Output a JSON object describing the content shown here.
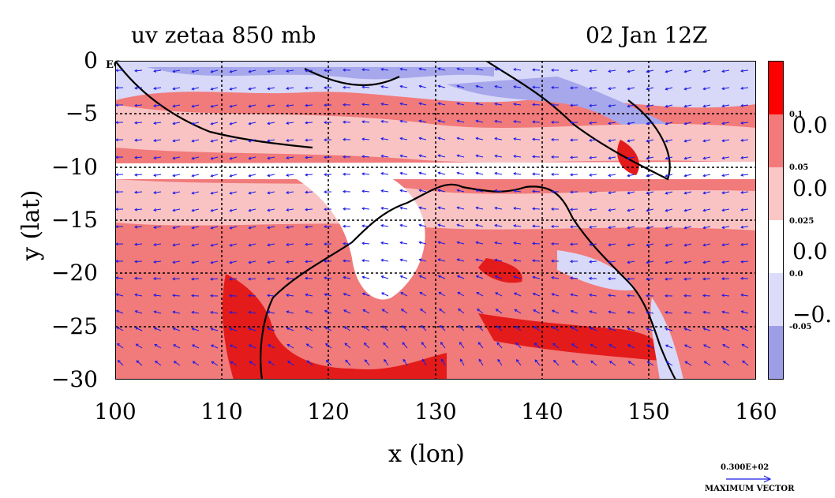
{
  "title": {
    "left": "uv zetaa 850 mb",
    "right": "02 Jan 12Z"
  },
  "axes": {
    "xlabel": "x (lon)",
    "ylabel": "y (lat)",
    "xticks": [
      "100",
      "110",
      "120",
      "130",
      "140",
      "150",
      "160"
    ],
    "yticks": [
      "0",
      "−5",
      "−10",
      "−15",
      "−20",
      "−25",
      "−30"
    ],
    "xrange": [
      100,
      160
    ],
    "yrange": [
      -30,
      0
    ],
    "equator_label": "EQ"
  },
  "colorbar": {
    "levels_small": [
      "0.1",
      "0.05",
      "0.025",
      "0.0",
      "-0.05"
    ],
    "levels_big": [
      "0.0",
      "0.0",
      "0.0",
      "−0."
    ],
    "colors": [
      "#ff0000",
      "#f47a7a",
      "#fbc6c6",
      "#ffffff",
      "#dcdcfa",
      "#9e9ee8"
    ]
  },
  "vector_key": {
    "value": "0.300E+02",
    "label": "MAXIMUM VECTOR"
  },
  "field_colors": {
    "deep_red": "#e31b1b",
    "mid_red": "#f17a7a",
    "light_red": "#f9c3c3",
    "light_blue": "#d8d8f8",
    "mid_blue": "#a7a7ec",
    "vector_blue": "#1a1ae6"
  }
}
